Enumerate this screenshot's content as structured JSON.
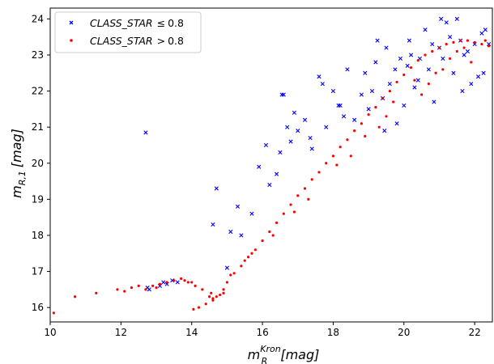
{
  "chart_data": {
    "type": "scatter",
    "title": "",
    "xlabel": {
      "main": "m",
      "sub": "R",
      "sup": "Kron",
      "unit": "[mag]"
    },
    "ylabel": {
      "main": "m",
      "sub": "R,1",
      "unit": "[mag]"
    },
    "xlim": [
      10,
      22.5
    ],
    "ylim": [
      15.6,
      24.3
    ],
    "xticks": [
      10,
      12,
      14,
      16,
      18,
      20,
      22
    ],
    "yticks": [
      16,
      17,
      18,
      19,
      20,
      21,
      22,
      23,
      24
    ],
    "grid": false,
    "legend_position": "top-left",
    "series": [
      {
        "name": "CLASS_STAR ≤ 0.8",
        "label_main": "CLASS_STAR",
        "label_rel": "≤",
        "label_value": "0.8",
        "marker": "x",
        "color": "#0000ff",
        "x": [
          12.7,
          12.8,
          13.1,
          13.2,
          13.3,
          13.45,
          13.6,
          12.75,
          14.6,
          14.7,
          15.1,
          15.3,
          15.4,
          15.7,
          15.9,
          16.1,
          15.0,
          16.2,
          16.4,
          16.5,
          16.6,
          16.8,
          17.0,
          17.2,
          17.4,
          17.6,
          16.7,
          16.9,
          17.8,
          18.0,
          18.2,
          18.4,
          18.6,
          18.8,
          17.7,
          18.3,
          18.9,
          19.0,
          19.2,
          19.4,
          19.6,
          19.8,
          19.1,
          19.5,
          19.9,
          20.0,
          20.2,
          20.4,
          20.6,
          20.8,
          20.1,
          20.3,
          20.7,
          21.0,
          21.2,
          21.4,
          21.6,
          21.8,
          21.1,
          21.3,
          21.5,
          22.0,
          22.2,
          22.4,
          22.1,
          22.3,
          21.9,
          21.7,
          16.55,
          17.35,
          18.15,
          19.25,
          19.45,
          20.45,
          20.85,
          21.65,
          22.25,
          21.05,
          20.15,
          19.75
        ],
        "y": [
          20.85,
          16.5,
          16.6,
          16.7,
          16.65,
          16.75,
          16.7,
          16.55,
          18.3,
          19.3,
          18.1,
          18.8,
          18.0,
          18.6,
          19.9,
          20.5,
          17.1,
          19.4,
          19.7,
          20.3,
          21.9,
          20.6,
          20.9,
          21.2,
          20.4,
          22.4,
          21.0,
          21.4,
          21.0,
          22.0,
          21.6,
          22.6,
          21.2,
          21.9,
          22.2,
          21.3,
          22.5,
          21.5,
          22.8,
          21.8,
          22.2,
          21.1,
          22.0,
          23.2,
          22.9,
          21.6,
          23.0,
          22.3,
          23.7,
          23.3,
          22.7,
          22.1,
          22.6,
          23.2,
          23.9,
          22.5,
          23.4,
          23.1,
          22.9,
          23.5,
          24.0,
          23.3,
          23.6,
          23.3,
          22.4,
          23.7,
          22.2,
          23.0,
          21.9,
          20.7,
          21.6,
          23.4,
          20.9,
          22.9,
          21.7,
          22.0,
          22.5,
          24.0,
          23.4,
          22.6
        ]
      },
      {
        "name": "CLASS_STAR > 0.8",
        "label_main": "CLASS_STAR",
        "label_rel": ">",
        "label_value": "0.8",
        "marker": "dot",
        "color": "#ff0000",
        "x": [
          10.1,
          10.7,
          11.3,
          11.9,
          12.1,
          12.3,
          12.5,
          12.9,
          13.1,
          13.3,
          13.5,
          13.7,
          13.9,
          14.1,
          14.3,
          14.5,
          14.6,
          14.7,
          14.8,
          14.9,
          15.0,
          15.2,
          15.4,
          15.6,
          15.8,
          16.0,
          16.2,
          16.4,
          16.6,
          16.8,
          17.0,
          17.2,
          17.4,
          17.6,
          17.8,
          18.0,
          18.2,
          18.4,
          18.6,
          18.8,
          19.0,
          19.2,
          19.4,
          19.6,
          19.8,
          20.0,
          20.2,
          20.4,
          20.6,
          20.8,
          21.0,
          21.2,
          21.4,
          21.6,
          21.8,
          22.0,
          22.2,
          22.4,
          14.4,
          14.2,
          14.6,
          14.9,
          15.1,
          15.5,
          16.3,
          17.3,
          18.5,
          19.5,
          20.5,
          21.1,
          21.5,
          20.7,
          20.9,
          21.3,
          21.7,
          21.9,
          22.3,
          19.3,
          13.0,
          12.7,
          13.8,
          14.0,
          14.05,
          14.55,
          15.7,
          16.9,
          18.1,
          18.9,
          19.7,
          20.3
        ],
        "y": [
          15.85,
          16.3,
          16.4,
          16.5,
          16.45,
          16.55,
          16.6,
          16.6,
          16.65,
          16.7,
          16.75,
          16.8,
          16.7,
          16.6,
          16.5,
          16.3,
          16.25,
          16.3,
          16.35,
          16.5,
          16.7,
          16.95,
          17.15,
          17.4,
          17.6,
          17.85,
          18.1,
          18.35,
          18.6,
          18.85,
          19.1,
          19.3,
          19.55,
          19.75,
          20.0,
          20.2,
          20.45,
          20.65,
          20.9,
          21.1,
          21.35,
          21.55,
          21.8,
          22.0,
          22.25,
          22.45,
          22.65,
          22.85,
          23.0,
          23.1,
          23.2,
          23.3,
          23.35,
          23.4,
          23.4,
          23.35,
          23.3,
          23.25,
          16.1,
          16.0,
          16.2,
          16.4,
          16.9,
          17.3,
          18.0,
          19.0,
          20.2,
          21.3,
          21.9,
          22.6,
          23.1,
          22.2,
          22.5,
          22.9,
          23.2,
          22.8,
          23.4,
          21.0,
          16.55,
          16.5,
          16.75,
          16.7,
          15.95,
          16.4,
          17.5,
          18.65,
          19.95,
          20.75,
          21.7,
          22.3
        ]
      }
    ]
  }
}
